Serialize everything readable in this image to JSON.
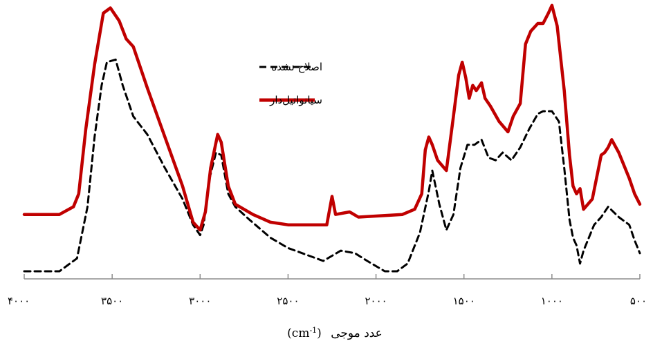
{
  "chart_data": {
    "type": "line",
    "title": "",
    "xlabel": "عدد موجی (cm-1)",
    "xlabel_parts": {
      "text": "عدد موجی",
      "unit_base": "(cm",
      "unit_sup": "-1",
      "unit_close": ")"
    },
    "ylabel": "",
    "xlim": [
      4000,
      500
    ],
    "x_reversed": true,
    "y_axis_visible": false,
    "ylim": [
      0,
      100
    ],
    "grid": false,
    "legend_position": "top-center",
    "x_ticks": [
      {
        "value": 4000,
        "label": "۴۰۰۰"
      },
      {
        "value": 3500,
        "label": "۳۵۰۰"
      },
      {
        "value": 3000,
        "label": "۳۰۰۰"
      },
      {
        "value": 2500,
        "label": "۲۵۰۰"
      },
      {
        "value": 2000,
        "label": "۲۰۰۰"
      },
      {
        "value": 1500,
        "label": "۱۵۰۰"
      },
      {
        "value": 1000,
        "label": "۱۰۰۰"
      },
      {
        "value": 500,
        "label": "۵۰۰"
      }
    ],
    "series": [
      {
        "name": "اصلاح نشده",
        "color": "#000000",
        "style": "dashed",
        "points": [
          [
            4000,
            0
          ],
          [
            3800,
            0
          ],
          [
            3700,
            5
          ],
          [
            3640,
            25
          ],
          [
            3600,
            52
          ],
          [
            3560,
            72
          ],
          [
            3530,
            81
          ],
          [
            3480,
            82
          ],
          [
            3440,
            72
          ],
          [
            3380,
            60
          ],
          [
            3300,
            53
          ],
          [
            3200,
            40
          ],
          [
            3100,
            28
          ],
          [
            3040,
            18
          ],
          [
            3000,
            14
          ],
          [
            2980,
            18
          ],
          [
            2950,
            35
          ],
          [
            2910,
            46
          ],
          [
            2880,
            45
          ],
          [
            2840,
            30
          ],
          [
            2800,
            25
          ],
          [
            2720,
            20
          ],
          [
            2600,
            13
          ],
          [
            2500,
            9
          ],
          [
            2300,
            4
          ],
          [
            2200,
            8
          ],
          [
            2120,
            7
          ],
          [
            2050,
            4
          ],
          [
            1950,
            0
          ],
          [
            1880,
            0
          ],
          [
            1820,
            3
          ],
          [
            1750,
            15
          ],
          [
            1700,
            31
          ],
          [
            1680,
            39
          ],
          [
            1640,
            26
          ],
          [
            1600,
            16
          ],
          [
            1560,
            22
          ],
          [
            1520,
            40
          ],
          [
            1480,
            49
          ],
          [
            1440,
            49
          ],
          [
            1400,
            51
          ],
          [
            1360,
            44
          ],
          [
            1320,
            43
          ],
          [
            1280,
            46
          ],
          [
            1230,
            43
          ],
          [
            1180,
            48
          ],
          [
            1130,
            55
          ],
          [
            1080,
            61
          ],
          [
            1050,
            62
          ],
          [
            1000,
            62
          ],
          [
            960,
            58
          ],
          [
            930,
            40
          ],
          [
            900,
            20
          ],
          [
            880,
            13
          ],
          [
            860,
            10
          ],
          [
            840,
            3
          ],
          [
            820,
            8
          ],
          [
            760,
            18
          ],
          [
            720,
            21
          ],
          [
            680,
            25
          ],
          [
            620,
            21
          ],
          [
            560,
            18
          ],
          [
            530,
            12
          ],
          [
            500,
            7
          ]
        ]
      },
      {
        "name": "سیانواتیل‌دار",
        "color": "#c00000",
        "style": "solid",
        "points": [
          [
            4000,
            22
          ],
          [
            3800,
            22
          ],
          [
            3720,
            25
          ],
          [
            3690,
            30
          ],
          [
            3650,
            55
          ],
          [
            3600,
            80
          ],
          [
            3550,
            100
          ],
          [
            3510,
            102
          ],
          [
            3460,
            97
          ],
          [
            3420,
            90
          ],
          [
            3380,
            87
          ],
          [
            3300,
            71
          ],
          [
            3200,
            52
          ],
          [
            3100,
            33
          ],
          [
            3040,
            19
          ],
          [
            3000,
            16
          ],
          [
            2970,
            23
          ],
          [
            2940,
            40
          ],
          [
            2900,
            53
          ],
          [
            2880,
            50
          ],
          [
            2840,
            33
          ],
          [
            2800,
            26
          ],
          [
            2700,
            22
          ],
          [
            2600,
            19
          ],
          [
            2500,
            18
          ],
          [
            2280,
            18
          ],
          [
            2250,
            29
          ],
          [
            2230,
            22
          ],
          [
            2150,
            23
          ],
          [
            2100,
            21
          ],
          [
            1850,
            22
          ],
          [
            1780,
            24
          ],
          [
            1740,
            30
          ],
          [
            1720,
            47
          ],
          [
            1700,
            52
          ],
          [
            1680,
            49
          ],
          [
            1650,
            43
          ],
          [
            1600,
            39
          ],
          [
            1560,
            60
          ],
          [
            1530,
            76
          ],
          [
            1510,
            81
          ],
          [
            1490,
            75
          ],
          [
            1470,
            67
          ],
          [
            1450,
            72
          ],
          [
            1430,
            70
          ],
          [
            1400,
            73
          ],
          [
            1380,
            67
          ],
          [
            1350,
            64
          ],
          [
            1300,
            58
          ],
          [
            1250,
            54
          ],
          [
            1220,
            60
          ],
          [
            1180,
            65
          ],
          [
            1150,
            88
          ],
          [
            1120,
            93
          ],
          [
            1080,
            96
          ],
          [
            1050,
            96
          ],
          [
            1020,
            100
          ],
          [
            1000,
            103
          ],
          [
            970,
            95
          ],
          [
            930,
            70
          ],
          [
            900,
            45
          ],
          [
            880,
            33
          ],
          [
            860,
            30
          ],
          [
            840,
            32
          ],
          [
            820,
            24
          ],
          [
            770,
            28
          ],
          [
            720,
            45
          ],
          [
            700,
            46
          ],
          [
            680,
            48
          ],
          [
            660,
            51
          ],
          [
            620,
            46
          ],
          [
            560,
            36
          ],
          [
            530,
            30
          ],
          [
            500,
            26
          ]
        ]
      }
    ]
  }
}
